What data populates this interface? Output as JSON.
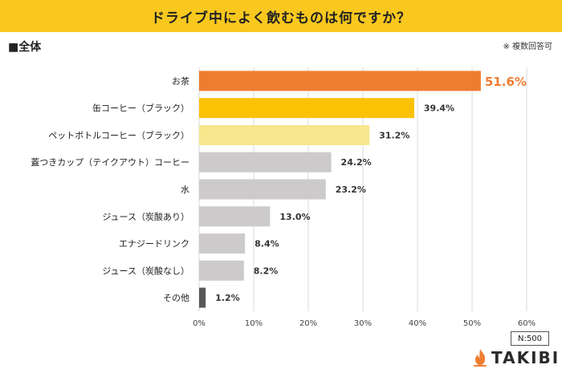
{
  "header": {
    "title": "ドライブ中によく飲むものは何ですか？"
  },
  "section_label": "■全体",
  "note": "※ 複数回答可",
  "sample": "N:500",
  "brand": {
    "name": "TAKIBI",
    "color": "#ef7d31"
  },
  "colors": {
    "title_band": "#f9c81e",
    "highlight": "#ef7d31",
    "second": "#fbc204",
    "third": "#f8e68d",
    "default": "#cccaca",
    "other": "#595959"
  },
  "chart_data": {
    "type": "bar",
    "orientation": "horizontal",
    "title": "ドライブ中によく飲むものは何ですか？",
    "xlabel": "",
    "ylabel": "",
    "xlim": [
      0,
      60
    ],
    "ticks": [
      "0%",
      "10%",
      "20%",
      "30%",
      "40%",
      "50%",
      "60%"
    ],
    "categories": [
      "お茶",
      "缶コーヒー（ブラック）",
      "ペットボトルコーヒー（ブラック）",
      "蓋つきカップ（テイクアウト）コーヒー",
      "水",
      "ジュース（炭酸あり）",
      "エナジードリンク",
      "ジュース（炭酸なし）",
      "その他"
    ],
    "values": [
      51.6,
      39.4,
      31.2,
      24.2,
      23.2,
      13.0,
      8.4,
      8.2,
      1.2
    ],
    "labels": [
      "51.6%",
      "39.4%",
      "31.2%",
      "24.2%",
      "23.2%",
      "13.0%",
      "8.4%",
      "8.2%",
      "1.2%"
    ],
    "bar_colors": [
      "#ef7d31",
      "#fbc204",
      "#f8e68d",
      "#cccaca",
      "#cccaca",
      "#cccaca",
      "#cccaca",
      "#cccaca",
      "#595959"
    ],
    "grid": true,
    "legend": "none"
  }
}
